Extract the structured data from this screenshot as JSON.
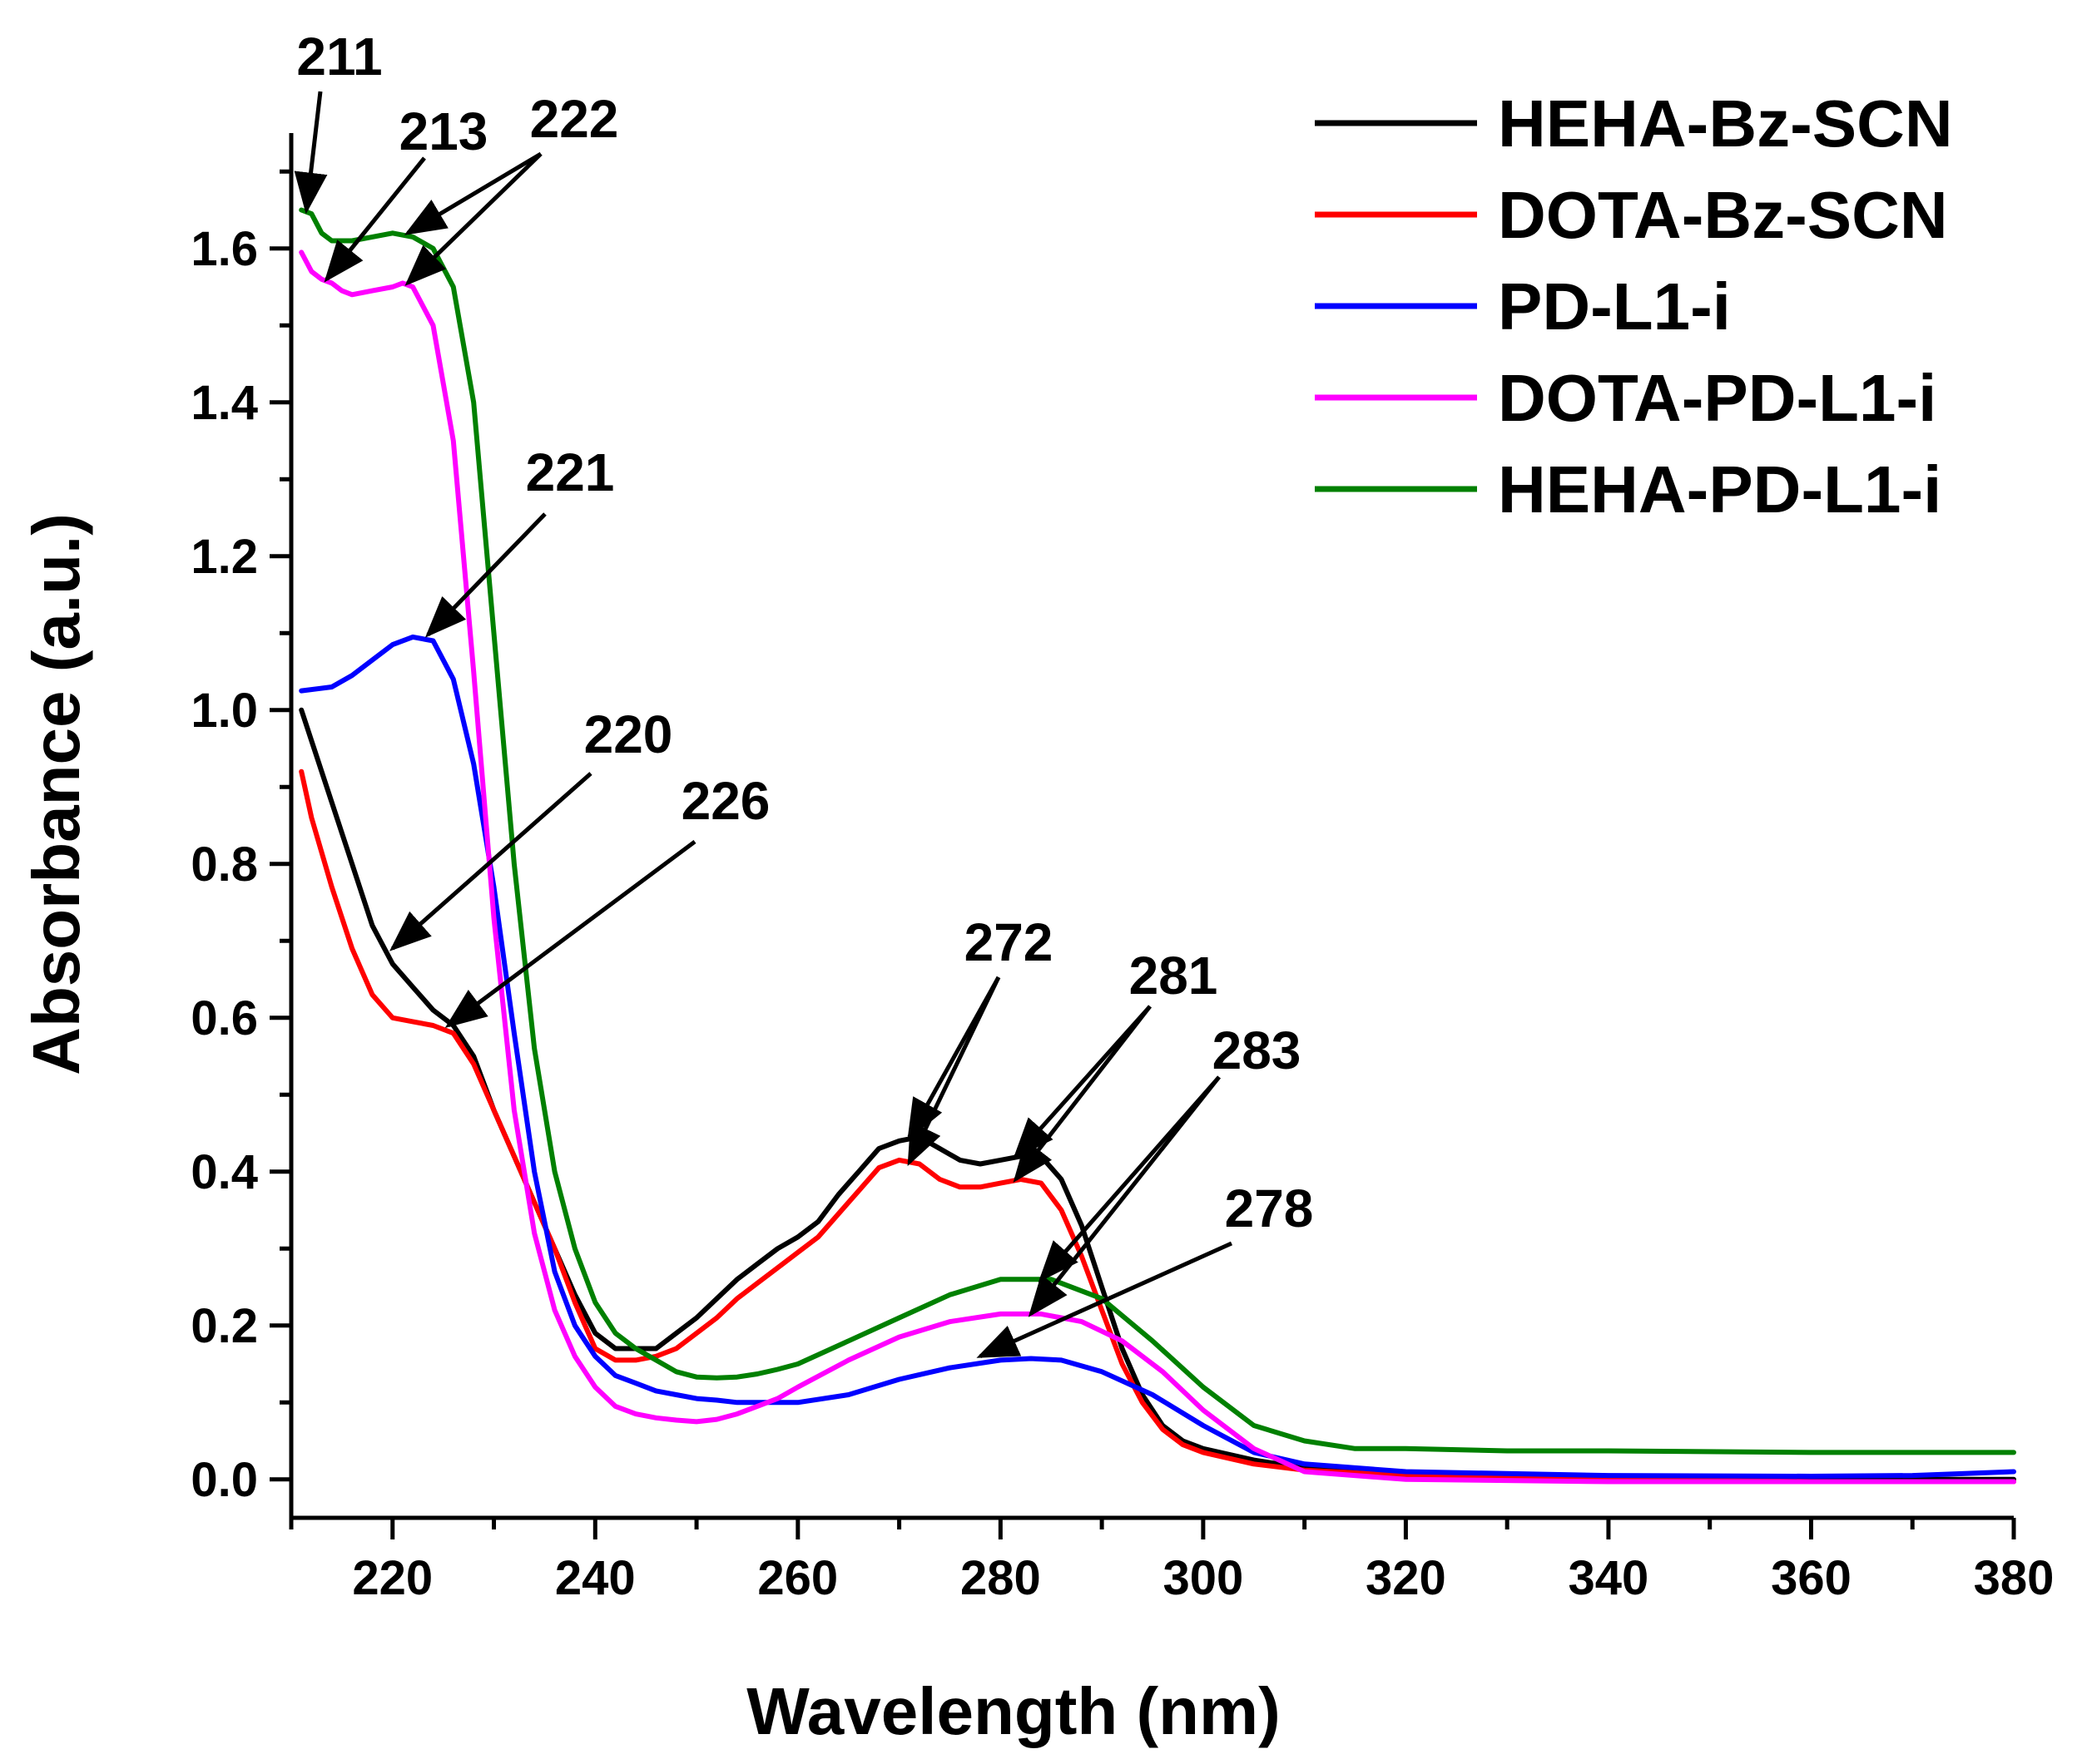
{
  "chart_data": {
    "type": "line",
    "title": "",
    "xlabel": "Wavelength (nm)",
    "ylabel": "Absorbance (a.u.)",
    "xlim": [
      210,
      380
    ],
    "ylim": [
      -0.05,
      1.75
    ],
    "xticks": [
      220,
      240,
      260,
      280,
      300,
      320,
      340,
      360,
      380
    ],
    "xtick_labels": [
      "220",
      "240",
      "260",
      "280",
      "300",
      "320",
      "340",
      "360",
      "380"
    ],
    "yticks": [
      0.0,
      0.2,
      0.4,
      0.6,
      0.8,
      1.0,
      1.2,
      1.4,
      1.6
    ],
    "ytick_labels": [
      "0.0",
      "0.2",
      "0.4",
      "0.6",
      "0.8",
      "1.0",
      "1.2",
      "1.4",
      "1.6"
    ],
    "grid": false,
    "legend_position": "top-right",
    "series": [
      {
        "name": "HEHA-Bz-SCN",
        "color": "#000000",
        "x": [
          211,
          212,
          214,
          216,
          218,
          220,
          222,
          224,
          226,
          228,
          230,
          232,
          234,
          236,
          238,
          240,
          242,
          244,
          246,
          248,
          250,
          252,
          254,
          256,
          258,
          260,
          262,
          264,
          266,
          268,
          270,
          272,
          274,
          276,
          278,
          280,
          282,
          284,
          286,
          288,
          290,
          292,
          294,
          296,
          298,
          300,
          305,
          310,
          320,
          340,
          360,
          380
        ],
        "y": [
          1.0,
          0.96,
          0.88,
          0.8,
          0.72,
          0.67,
          0.64,
          0.61,
          0.59,
          0.55,
          0.48,
          0.42,
          0.36,
          0.3,
          0.24,
          0.19,
          0.17,
          0.17,
          0.17,
          0.19,
          0.21,
          0.235,
          0.26,
          0.28,
          0.3,
          0.315,
          0.335,
          0.37,
          0.4,
          0.43,
          0.44,
          0.445,
          0.43,
          0.415,
          0.41,
          0.415,
          0.42,
          0.42,
          0.39,
          0.33,
          0.25,
          0.17,
          0.11,
          0.07,
          0.05,
          0.04,
          0.025,
          0.015,
          0.008,
          0.003,
          0.0,
          0.0
        ]
      },
      {
        "name": "DOTA-Bz-SCN",
        "color": "#ff0000",
        "x": [
          211,
          212,
          214,
          216,
          218,
          220,
          222,
          224,
          226,
          228,
          230,
          232,
          234,
          236,
          238,
          240,
          242,
          244,
          246,
          248,
          250,
          252,
          254,
          256,
          258,
          260,
          262,
          264,
          266,
          268,
          270,
          272,
          274,
          276,
          278,
          280,
          282,
          284,
          286,
          288,
          290,
          292,
          294,
          296,
          298,
          300,
          305,
          310,
          320,
          340,
          360,
          380
        ],
        "y": [
          0.92,
          0.86,
          0.77,
          0.69,
          0.63,
          0.6,
          0.595,
          0.59,
          0.58,
          0.54,
          0.48,
          0.42,
          0.36,
          0.3,
          0.23,
          0.17,
          0.155,
          0.155,
          0.16,
          0.17,
          0.19,
          0.21,
          0.235,
          0.255,
          0.275,
          0.295,
          0.315,
          0.345,
          0.375,
          0.405,
          0.415,
          0.41,
          0.39,
          0.38,
          0.38,
          0.385,
          0.39,
          0.385,
          0.35,
          0.29,
          0.22,
          0.15,
          0.1,
          0.065,
          0.045,
          0.035,
          0.02,
          0.012,
          0.005,
          0.0,
          -0.003,
          -0.003
        ]
      },
      {
        "name": "PD-L1-i",
        "color": "#0000ff",
        "x": [
          211,
          214,
          216,
          218,
          220,
          222,
          224,
          226,
          228,
          230,
          232,
          234,
          236,
          238,
          240,
          242,
          244,
          246,
          248,
          250,
          252,
          254,
          256,
          258,
          260,
          265,
          270,
          275,
          280,
          283,
          286,
          290,
          295,
          300,
          305,
          310,
          320,
          340,
          360,
          370,
          380
        ],
        "y": [
          1.025,
          1.03,
          1.045,
          1.065,
          1.085,
          1.095,
          1.09,
          1.04,
          0.93,
          0.77,
          0.58,
          0.4,
          0.27,
          0.2,
          0.16,
          0.135,
          0.125,
          0.115,
          0.11,
          0.105,
          0.103,
          0.1,
          0.1,
          0.1,
          0.1,
          0.11,
          0.13,
          0.145,
          0.155,
          0.157,
          0.155,
          0.14,
          0.11,
          0.07,
          0.035,
          0.02,
          0.01,
          0.005,
          0.004,
          0.005,
          0.01
        ]
      },
      {
        "name": "DOTA-PD-L1-i",
        "color": "#ff00ff",
        "x": [
          211,
          212,
          213,
          214,
          215,
          216,
          218,
          220,
          221,
          222,
          224,
          226,
          228,
          230,
          232,
          234,
          236,
          238,
          240,
          242,
          244,
          246,
          248,
          250,
          252,
          254,
          256,
          258,
          260,
          265,
          270,
          275,
          280,
          284,
          288,
          292,
          296,
          300,
          305,
          310,
          320,
          340,
          360,
          380
        ],
        "y": [
          1.595,
          1.57,
          1.56,
          1.555,
          1.545,
          1.54,
          1.545,
          1.55,
          1.555,
          1.55,
          1.5,
          1.35,
          1.05,
          0.73,
          0.48,
          0.32,
          0.22,
          0.16,
          0.12,
          0.095,
          0.085,
          0.08,
          0.077,
          0.075,
          0.078,
          0.085,
          0.095,
          0.105,
          0.12,
          0.155,
          0.185,
          0.205,
          0.215,
          0.215,
          0.205,
          0.18,
          0.14,
          0.09,
          0.04,
          0.01,
          0.0,
          -0.003,
          -0.003,
          -0.003
        ]
      },
      {
        "name": "HEHA-PD-L1-i",
        "color": "#008000",
        "x": [
          211,
          212,
          213,
          214,
          216,
          218,
          220,
          222,
          224,
          226,
          228,
          230,
          232,
          234,
          236,
          238,
          240,
          242,
          244,
          246,
          248,
          250,
          252,
          254,
          256,
          258,
          260,
          265,
          270,
          275,
          280,
          285,
          290,
          295,
          300,
          305,
          310,
          315,
          320,
          330,
          340,
          360,
          380
        ],
        "y": [
          1.65,
          1.645,
          1.62,
          1.61,
          1.61,
          1.615,
          1.62,
          1.615,
          1.6,
          1.55,
          1.4,
          1.1,
          0.8,
          0.56,
          0.4,
          0.3,
          0.23,
          0.19,
          0.17,
          0.155,
          0.14,
          0.133,
          0.132,
          0.133,
          0.137,
          0.143,
          0.15,
          0.18,
          0.21,
          0.24,
          0.26,
          0.26,
          0.235,
          0.18,
          0.12,
          0.07,
          0.05,
          0.04,
          0.04,
          0.037,
          0.037,
          0.035,
          0.035
        ]
      }
    ],
    "annotations": [
      {
        "text": "211",
        "target_x": 211.5,
        "target_y": 1.65
      },
      {
        "text": "213",
        "target_x": 213.5,
        "target_y": 1.56
      },
      {
        "text": "222",
        "target_x": 221.5,
        "target_y": 1.62
      },
      {
        "text": "222",
        "target_x": 221.5,
        "target_y": 1.555
      },
      {
        "text": "221",
        "target_x": 223.5,
        "target_y": 1.098
      },
      {
        "text": "220",
        "target_x": 220.0,
        "target_y": 0.69
      },
      {
        "text": "226",
        "target_x": 225.5,
        "target_y": 0.59
      },
      {
        "text": "272",
        "target_x": 271.0,
        "target_y": 0.445
      },
      {
        "text": "272",
        "target_x": 271.0,
        "target_y": 0.412
      },
      {
        "text": "281",
        "target_x": 281.5,
        "target_y": 0.42
      },
      {
        "text": "281",
        "target_x": 281.5,
        "target_y": 0.39
      },
      {
        "text": "283",
        "target_x": 284.0,
        "target_y": 0.26
      },
      {
        "text": "283",
        "target_x": 283.0,
        "target_y": 0.215
      },
      {
        "text": "278",
        "target_x": 278.0,
        "target_y": 0.16
      }
    ]
  }
}
